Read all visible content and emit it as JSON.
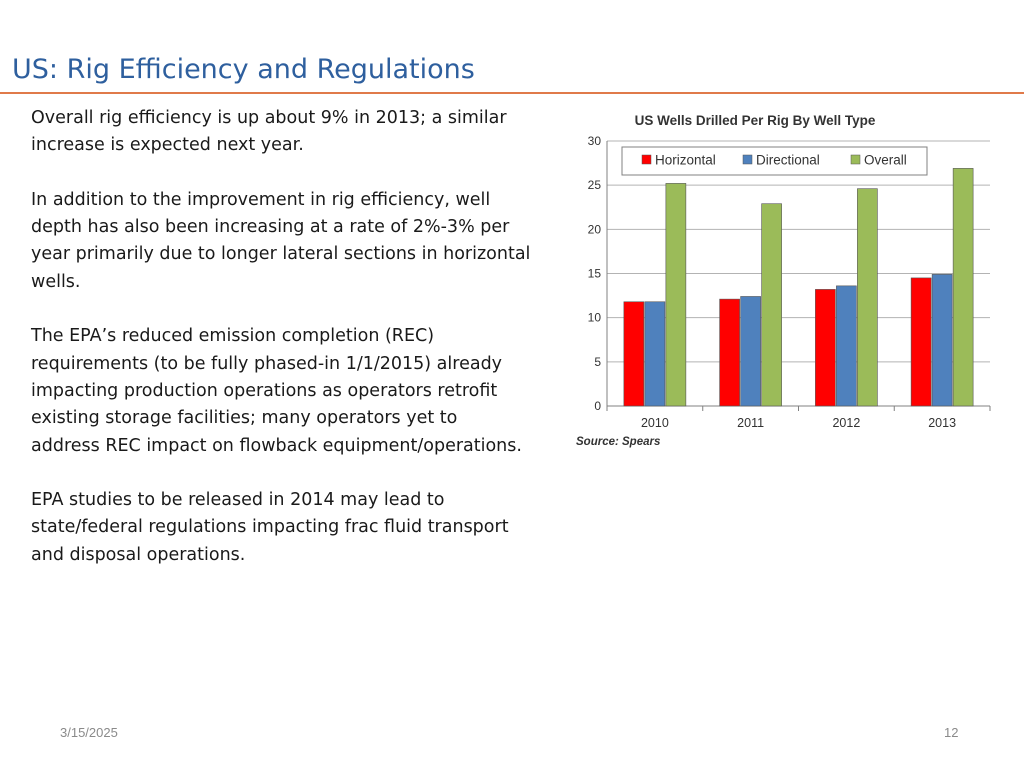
{
  "slide": {
    "title": "US: Rig Efficiency and Regulations",
    "paragraphs": [
      "Overall rig efficiency is up about 9% in 2013; a similar increase is expected next year.",
      "In addition to the improvement in rig efficiency, well depth has also been increasing at a rate of 2%-3% per year primarily due to longer lateral sections in horizontal wells.",
      "The EPA’s reduced emission completion (REC) requirements (to be fully phased-in 1/1/2015) already impacting production operations as operators retrofit existing storage facilities; many operators yet to address REC impact on flowback equipment/operations.",
      "EPA studies to be released in 2014 may lead to state/federal regulations impacting frac fluid transport and disposal operations."
    ]
  },
  "footer": {
    "date": "3/15/2025",
    "page": "12"
  },
  "colors": {
    "title": "#2e5f9e",
    "rule": "#e07a4a",
    "horizontal": "#ff0000",
    "directional": "#4f81bd",
    "overall": "#9bbb59"
  },
  "chart_data": {
    "type": "bar",
    "title": "US Wells Drilled Per Rig By Well Type",
    "source": "Source: Spears",
    "categories": [
      "2010",
      "2011",
      "2012",
      "2013"
    ],
    "series": [
      {
        "name": "Horizontal",
        "values": [
          11.8,
          12.1,
          13.2,
          14.5
        ],
        "color": "#ff0000"
      },
      {
        "name": "Directional",
        "values": [
          11.8,
          12.4,
          13.6,
          14.9
        ],
        "color": "#4f81bd"
      },
      {
        "name": "Overall",
        "values": [
          25.2,
          22.9,
          24.6,
          26.9
        ],
        "color": "#9bbb59"
      }
    ],
    "yticks": [
      "0",
      "5",
      "10",
      "15",
      "20",
      "25",
      "30"
    ],
    "ylim": [
      0,
      30
    ],
    "grid": true,
    "legend_position": "top"
  }
}
